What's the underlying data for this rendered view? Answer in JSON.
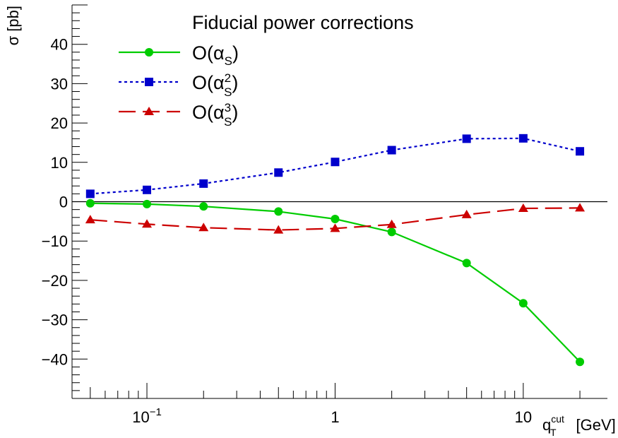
{
  "chart_data": {
    "type": "line",
    "title": "",
    "legend_title": "Fiducial power corrections",
    "legend_position": "top-center",
    "xlabel": "q_T^cut [GeV]",
    "xlabel_parts": {
      "base": "q",
      "sup": "cut",
      "sub": "T",
      "unit": "[GeV]"
    },
    "ylabel": "σ [pb]",
    "xscale": "log",
    "xlim": [
      0.04,
      28
    ],
    "ylim": [
      -50,
      50
    ],
    "x_ticks": [
      {
        "value": 0.1,
        "label": "10",
        "sup": "−1"
      },
      {
        "value": 1,
        "label": "1",
        "sup": ""
      },
      {
        "value": 10,
        "label": "10",
        "sup": ""
      }
    ],
    "y_ticks": [
      {
        "value": 40,
        "label": "40"
      },
      {
        "value": 30,
        "label": "30"
      },
      {
        "value": 20,
        "label": "20"
      },
      {
        "value": 10,
        "label": "10"
      },
      {
        "value": 0,
        "label": "0"
      },
      {
        "value": -10,
        "label": "−10"
      },
      {
        "value": -20,
        "label": "−20"
      },
      {
        "value": -30,
        "label": "−30"
      },
      {
        "value": -40,
        "label": "−40"
      }
    ],
    "zero_line": true,
    "grid": false,
    "x": [
      0.05,
      0.1,
      0.2,
      0.5,
      1,
      2,
      5,
      10,
      20
    ],
    "series": [
      {
        "name": "O(α_S)",
        "legend": {
          "pre": "O(α",
          "sub": "S",
          "sup": "",
          "post": ")"
        },
        "color": "#00cc00",
        "marker": "circle",
        "dash": "solid",
        "values": [
          -0.4,
          -0.6,
          -1.2,
          -2.5,
          -4.4,
          -7.7,
          -15.6,
          -25.8,
          -40.7
        ]
      },
      {
        "name": "O(α_S^2)",
        "legend": {
          "pre": "O(α",
          "sub": "S",
          "sup": "2",
          "post": ")"
        },
        "color": "#0000cc",
        "marker": "square",
        "dash": "dotted",
        "values": [
          2.0,
          3.0,
          4.6,
          7.4,
          10.1,
          13.1,
          16.0,
          16.1,
          12.8
        ]
      },
      {
        "name": "O(α_S^3)",
        "legend": {
          "pre": "O(α",
          "sub": "S",
          "sup": "3",
          "post": ")"
        },
        "color": "#cc0000",
        "marker": "triangle",
        "dash": "dashed",
        "values": [
          -4.6,
          -5.7,
          -6.6,
          -7.2,
          -6.8,
          -5.8,
          -3.3,
          -1.7,
          -1.6
        ]
      }
    ]
  }
}
